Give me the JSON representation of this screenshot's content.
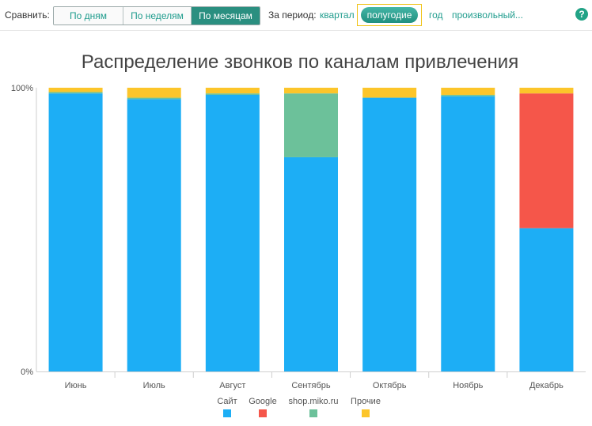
{
  "toolbar": {
    "compare_label": "Сравнить:",
    "compare_options": [
      "По дням",
      "По неделям",
      "По месяцам"
    ],
    "compare_active": "По месяцам",
    "period_label": "За период:",
    "period_options": [
      "квартал",
      "полугодие",
      "год",
      "произвольный..."
    ],
    "period_active": "полугодие",
    "help_glyph": "?"
  },
  "colors": {
    "accent": "#1f9c8d",
    "active_button": "#2a8f80",
    "highlight_border": "#f0c419"
  },
  "chart_data": {
    "type": "bar",
    "stacked": true,
    "normalized": true,
    "title": "Распределение звонков по каналам привлечения",
    "categories": [
      "Июнь",
      "Июль",
      "Август",
      "Сентябрь",
      "Октябрь",
      "Ноябрь",
      "Декабрь"
    ],
    "series": [
      {
        "name": "Сайт",
        "color": "#1daef5",
        "values": [
          98,
          96,
          97.5,
          75.5,
          96.5,
          97,
          50.5
        ]
      },
      {
        "name": "Google",
        "color": "#f5564a",
        "values": [
          0,
          0,
          0,
          0,
          0,
          0,
          47.5
        ]
      },
      {
        "name": "shop.miko.ru",
        "color": "#6cc19a",
        "values": [
          0.5,
          0.5,
          0.5,
          22.5,
          0,
          0.5,
          0
        ]
      },
      {
        "name": "Прочие",
        "color": "#fcc52a",
        "values": [
          1.5,
          3.5,
          2,
          2,
          3.5,
          2.5,
          2
        ]
      }
    ],
    "yaxis": {
      "ticks": [
        "100%",
        "0%"
      ],
      "range": [
        0,
        100
      ]
    },
    "legend": "bottom-center",
    "grid": false
  }
}
